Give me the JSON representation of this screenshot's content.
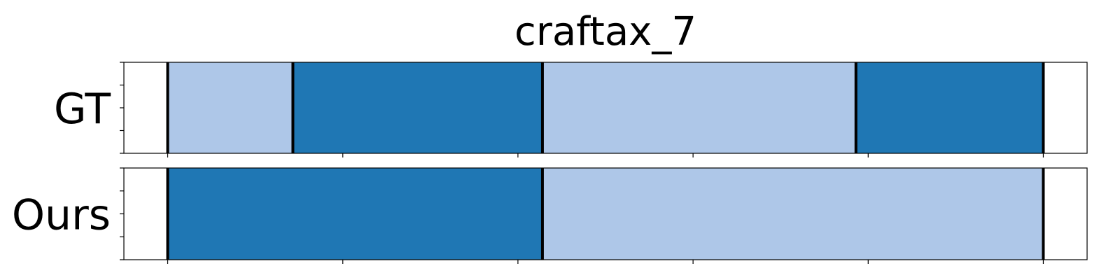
{
  "chart_data": {
    "type": "segmentation-timeline",
    "title": "craftax_7",
    "x_range": [
      0,
      1.1
    ],
    "x_ticks": [
      0.05,
      0.25,
      0.45,
      0.65,
      0.85,
      1.05
    ],
    "y_ticks_per_row": 5,
    "boundary_color": "#000000",
    "colors": {
      "light": "#aec7e8",
      "dark": "#1f77b4"
    },
    "rows": [
      {
        "label": "GT",
        "segments": [
          {
            "start": 0.05,
            "end": 0.193,
            "color": "light"
          },
          {
            "start": 0.193,
            "end": 0.478,
            "color": "dark"
          },
          {
            "start": 0.478,
            "end": 0.836,
            "color": "light"
          },
          {
            "start": 0.836,
            "end": 1.05,
            "color": "dark"
          }
        ]
      },
      {
        "label": "Ours",
        "segments": [
          {
            "start": 0.05,
            "end": 0.478,
            "color": "dark"
          },
          {
            "start": 0.478,
            "end": 1.05,
            "color": "light"
          }
        ]
      }
    ]
  }
}
